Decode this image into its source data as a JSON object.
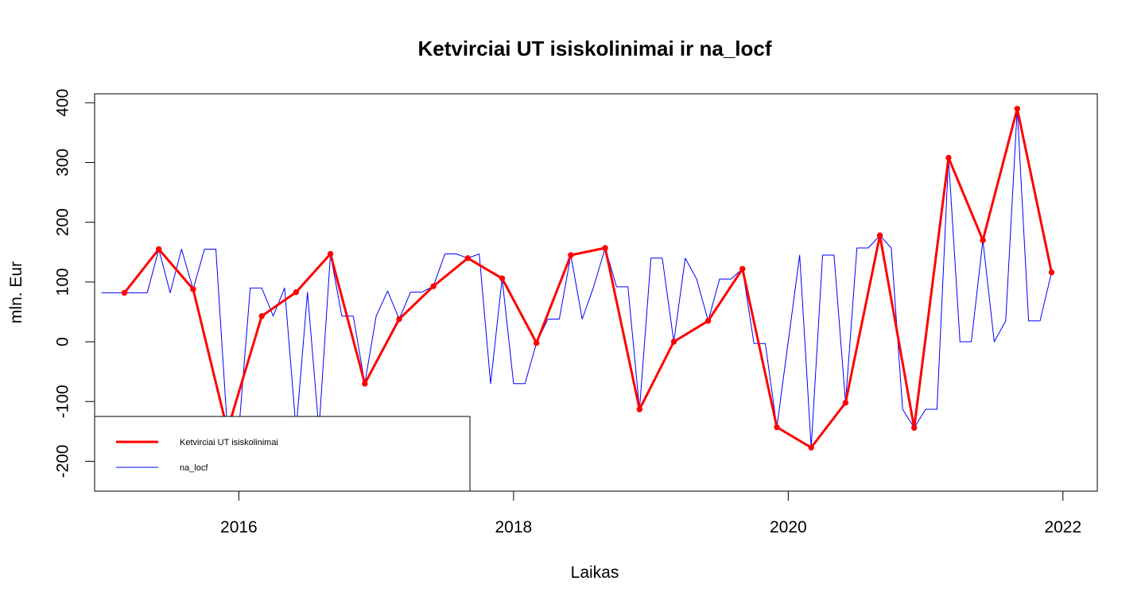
{
  "chart_data": {
    "type": "line",
    "title": "Ketvirciai UT isiskolinimai ir na_locf",
    "xlabel": "Laikas",
    "ylabel": "mln. Eur",
    "xlim": [
      2014.95,
      2022.25
    ],
    "ylim": [
      -250,
      415
    ],
    "x_ticks": [
      2016,
      2018,
      2020,
      2022
    ],
    "y_ticks": [
      -200,
      -100,
      0,
      100,
      200,
      300,
      400
    ],
    "legend": {
      "placement": "bottom-left",
      "entries": [
        {
          "label": "Ketvirciai UT isiskolinimai",
          "color": "#ff0000"
        },
        {
          "label": "na_locf",
          "color": "#0000ff"
        }
      ]
    },
    "series": [
      {
        "name": "Ketvirciai UT isiskolinimai",
        "color": "#ff0000",
        "style": "thick-line-with-points",
        "x": [
          2015.167,
          2015.417,
          2015.667,
          2015.917,
          2016.167,
          2016.417,
          2016.667,
          2016.917,
          2017.167,
          2017.417,
          2017.667,
          2017.917,
          2018.167,
          2018.417,
          2018.667,
          2018.917,
          2019.167,
          2019.417,
          2019.667,
          2019.917,
          2020.167,
          2020.417,
          2020.667,
          2020.917,
          2021.167,
          2021.417,
          2021.667,
          2021.917
        ],
        "y": [
          82,
          155,
          88,
          -148,
          43,
          83,
          147,
          -70,
          38,
          93,
          140,
          106,
          -2,
          145,
          157,
          -113,
          0,
          35,
          122,
          -143,
          -177,
          -102,
          178,
          -144,
          308,
          170,
          390,
          116
        ]
      },
      {
        "name": "na_locf",
        "color": "#0000ff",
        "style": "thin-line",
        "x": [
          2015.0,
          2015.083,
          2015.167,
          2015.25,
          2015.333,
          2015.417,
          2015.5,
          2015.583,
          2015.667,
          2015.75,
          2015.833,
          2015.917,
          2016.0,
          2016.083,
          2016.167,
          2016.25,
          2016.333,
          2016.417,
          2016.5,
          2016.583,
          2016.667,
          2016.75,
          2016.833,
          2016.917,
          2017.0,
          2017.083,
          2017.167,
          2017.25,
          2017.333,
          2017.417,
          2017.5,
          2017.583,
          2017.667,
          2017.75,
          2017.833,
          2017.917,
          2018.0,
          2018.083,
          2018.167,
          2018.25,
          2018.333,
          2018.417,
          2018.5,
          2018.583,
          2018.667,
          2018.75,
          2018.833,
          2018.917,
          2019.0,
          2019.083,
          2019.167,
          2019.25,
          2019.333,
          2019.417,
          2019.5,
          2019.583,
          2019.667,
          2019.75,
          2019.833,
          2019.917,
          2020.0,
          2020.083,
          2020.167,
          2020.25,
          2020.333,
          2020.417,
          2020.5,
          2020.583,
          2020.667,
          2020.75,
          2020.833,
          2020.917,
          2021.0,
          2021.083,
          2021.167,
          2021.25,
          2021.333,
          2021.417,
          2021.5,
          2021.583,
          2021.667,
          2021.75,
          2021.833,
          2021.917
        ],
        "y": [
          82,
          82,
          82,
          82,
          82,
          155,
          82,
          155,
          88,
          155,
          155,
          -148,
          -148,
          90,
          90,
          43,
          90,
          -148,
          83,
          -148,
          147,
          43,
          43,
          -70,
          43,
          85,
          38,
          83,
          83,
          93,
          147,
          147,
          140,
          147,
          -70,
          106,
          -70,
          -70,
          -2,
          38,
          38,
          145,
          38,
          92,
          157,
          92,
          92,
          -113,
          140,
          140,
          0,
          140,
          105,
          35,
          105,
          105,
          122,
          -3,
          -3,
          -143,
          0,
          145,
          -177,
          145,
          145,
          -102,
          157,
          157,
          178,
          157,
          -113,
          -144,
          -113,
          -113,
          308,
          0,
          0,
          170,
          0,
          35,
          390,
          35,
          35,
          116
        ]
      }
    ]
  }
}
